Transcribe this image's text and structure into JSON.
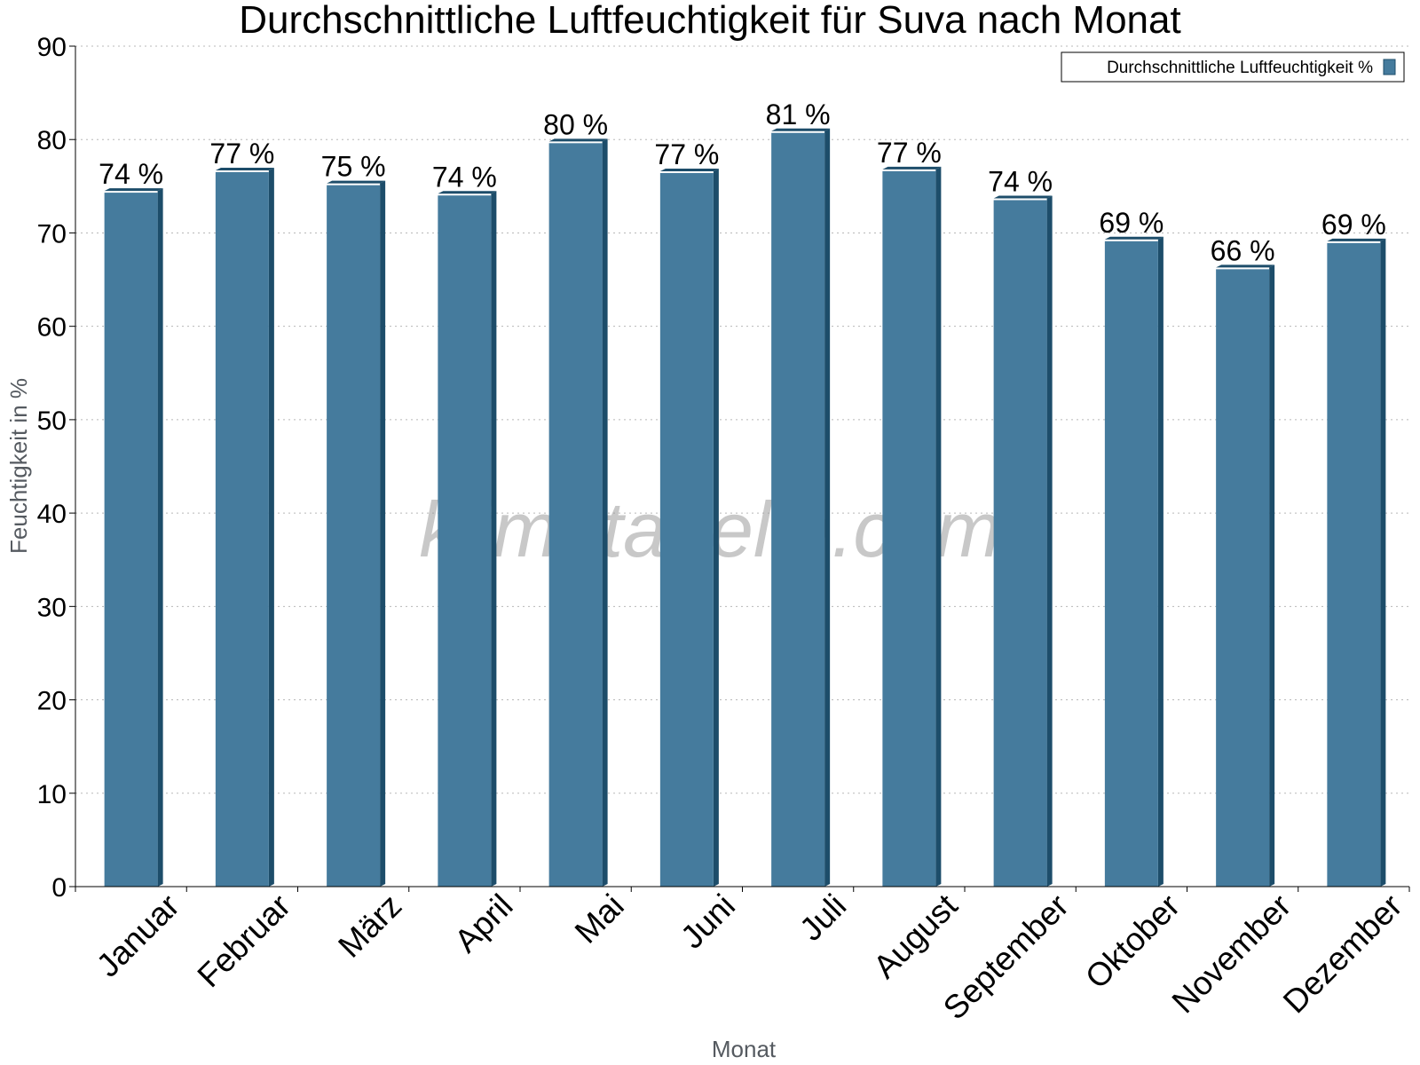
{
  "chart_data": {
    "type": "bar",
    "title": "Durchschnittliche Luftfeuchtigkeit für Suva nach Monat",
    "xlabel": "Monat",
    "ylabel": "Feuchtigkeit in %",
    "ylim": [
      0,
      90
    ],
    "yticks": [
      0,
      10,
      20,
      30,
      40,
      50,
      60,
      70,
      80,
      90
    ],
    "grid": true,
    "legend_position": "top-right",
    "categories": [
      "Januar",
      "Februar",
      "März",
      "April",
      "Mai",
      "Juni",
      "Juli",
      "August",
      "September",
      "Oktober",
      "November",
      "Dezember"
    ],
    "series": [
      {
        "name": "Durchschnittliche Luftfeuchtigkeit %",
        "color": "#457b9d",
        "values": [
          74.5,
          76.7,
          75.3,
          74.2,
          79.8,
          76.6,
          80.9,
          76.8,
          73.7,
          69.3,
          66.3,
          69.1
        ],
        "labels": [
          "74 %",
          "77 %",
          "75 %",
          "74 %",
          "80 %",
          "77 %",
          "81 %",
          "77 %",
          "74 %",
          "69 %",
          "66 %",
          "69 %"
        ]
      }
    ]
  },
  "watermark": "klimatabelle.com"
}
